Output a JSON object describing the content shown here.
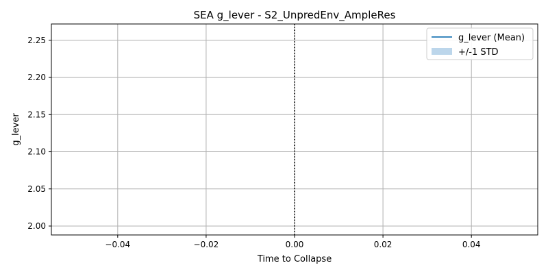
{
  "chart_data": {
    "type": "line",
    "title": "SEA g_lever - S2_UnpredEnv_AmpleRes",
    "xlabel": "Time to Collapse",
    "ylabel": "g_lever",
    "xlim": [
      -0.055,
      0.055
    ],
    "ylim": [
      1.988,
      2.272
    ],
    "xticks": [
      -0.04,
      -0.02,
      0.0,
      0.02,
      0.04
    ],
    "xtick_labels": [
      "−0.04",
      "−0.02",
      "0.00",
      "0.02",
      "0.04"
    ],
    "yticks": [
      2.0,
      2.05,
      2.1,
      2.15,
      2.2,
      2.25
    ],
    "ytick_labels": [
      "2.00",
      "2.05",
      "2.10",
      "2.15",
      "2.20",
      "2.25"
    ],
    "grid": true,
    "legend_position": "top-right",
    "series": [
      {
        "name": "g_lever (Mean)",
        "kind": "line",
        "color": "#1f77b4",
        "x": [],
        "y": []
      },
      {
        "name": "+/-1 STD",
        "kind": "band",
        "color": "#a6c8e4",
        "x": [],
        "lower": [],
        "upper": []
      }
    ],
    "annotations": [
      {
        "kind": "vline",
        "x": 0.0,
        "style": "dotted",
        "color": "#000000"
      }
    ]
  }
}
